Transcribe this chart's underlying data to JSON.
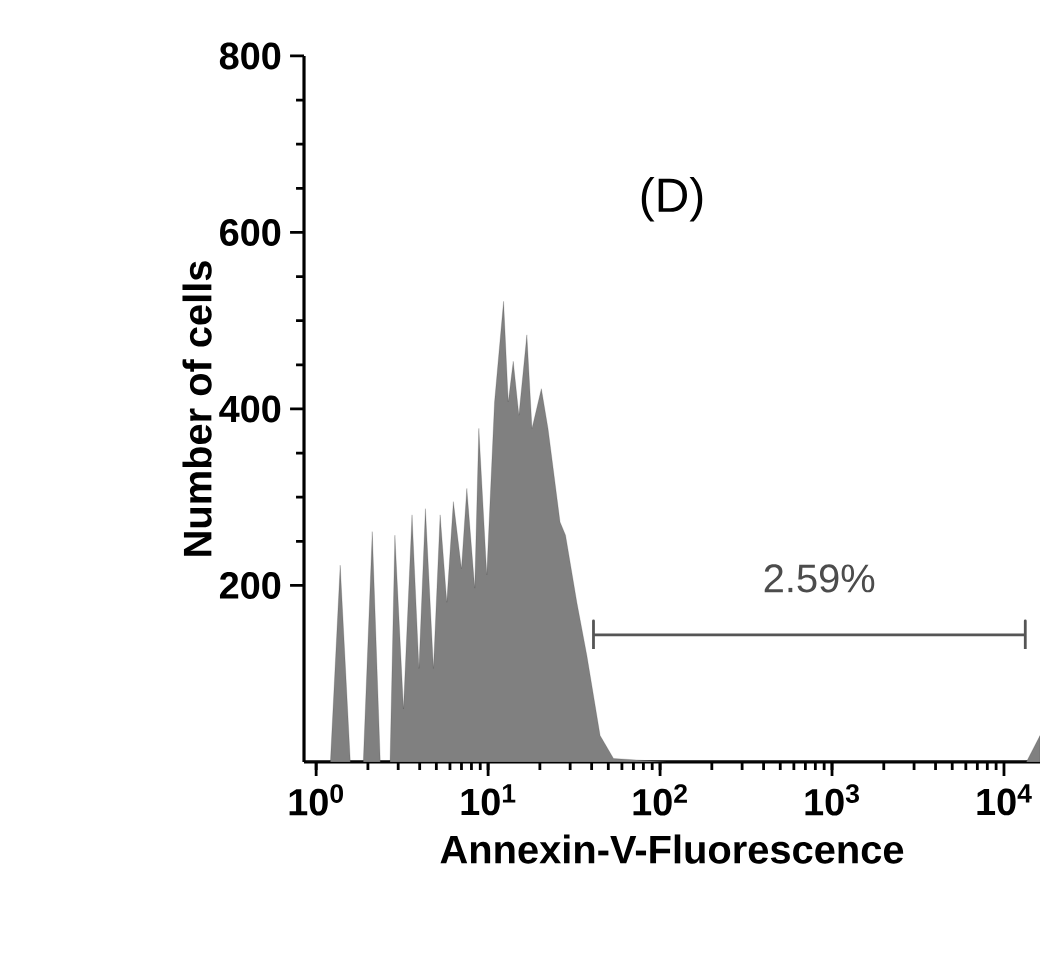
{
  "chart_data": {
    "type": "area",
    "title": "(D)",
    "xlabel": "Annexin-V-Fluorescence",
    "ylabel": "Number of cells",
    "log": "x",
    "xlim": [
      0.85,
      16200
    ],
    "ylim": [
      0,
      800
    ],
    "xticks": [
      {
        "value": 1,
        "label": "10$^{0}$"
      },
      {
        "value": 10,
        "label": "10$^{1}$"
      },
      {
        "value": 100,
        "label": "10$^{2}$"
      },
      {
        "value": 1000,
        "label": "10$^{3}$"
      },
      {
        "value": 10000,
        "label": "10$^{4}$"
      }
    ],
    "yticks": [
      200,
      400,
      600,
      800
    ],
    "grid": false,
    "annotations": [
      "2.59%"
    ],
    "series": [
      {
        "color": "#808080",
        "x": [
          0.88,
          1.21,
          1.38,
          1.58,
          1.88,
          2.12,
          2.36,
          2.69,
          2.87,
          3.22,
          3.61,
          3.96,
          4.32,
          4.81,
          5.26,
          5.75,
          6.28,
          7.0,
          7.52,
          8.36,
          8.83,
          9.82,
          10.9,
          12.3,
          13.1,
          14.0,
          15.1,
          16.8,
          18.0,
          20.4,
          22.3,
          26.2,
          28.2,
          32.8,
          37.5,
          44.8,
          53.6,
          109,
          652,
          3880,
          13500,
          16200
        ],
        "values": [
          0,
          0,
          223,
          0,
          0,
          261,
          0,
          0,
          257,
          60,
          280,
          106,
          287,
          106,
          280,
          181,
          295,
          219,
          310,
          197,
          378,
          212,
          408,
          522,
          408,
          454,
          393,
          484,
          378,
          423,
          378,
          272,
          257,
          181,
          121,
          30,
          4,
          0,
          0,
          0,
          0,
          30
        ]
      },
      {
        "type": "line",
        "color": "#555555",
        "x": [
          41,
          41,
          41,
          13300,
          13300,
          13300
        ],
        "values": [
          128,
          160,
          144,
          144,
          160,
          128
        ]
      }
    ]
  }
}
